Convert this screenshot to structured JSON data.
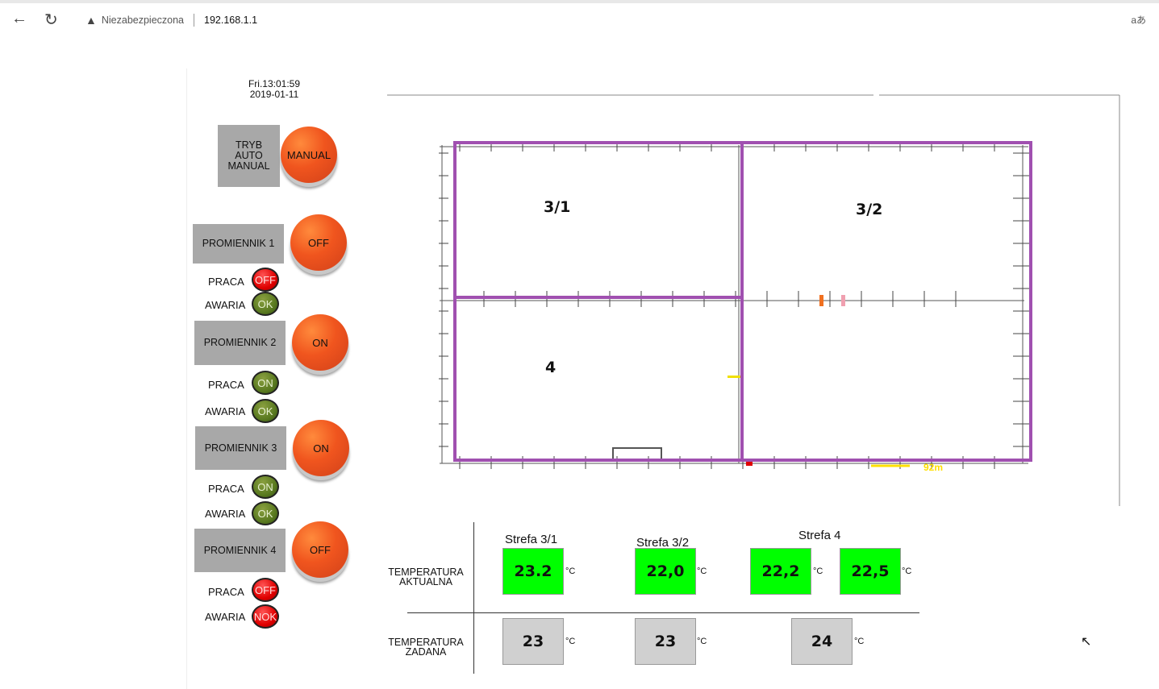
{
  "browser": {
    "back_icon": "arrow-left-icon",
    "reload_icon": "reload-icon",
    "warning_icon": "warning-triangle-icon",
    "security_label": "Niezabezpieczona",
    "url": "192.168.1.1",
    "translate_label": "aあ"
  },
  "clock": {
    "time": "Fri.13:01:59",
    "date": "2019-01-11"
  },
  "mode": {
    "label_lines": [
      "TRYB",
      "AUTO",
      "MANUAL"
    ],
    "button": "MANUAL"
  },
  "heaters": [
    {
      "name": "PROMIENNIK 1",
      "button": "OFF",
      "praca_label": "PRACA",
      "praca": "OFF",
      "praca_color": "red",
      "awaria_label": "AWARIA",
      "awaria": "OK",
      "awaria_color": "green"
    },
    {
      "name": "PROMIENNIK 2",
      "button": "ON",
      "praca_label": "PRACA",
      "praca": "ON",
      "praca_color": "green",
      "awaria_label": "AWARIA",
      "awaria": "OK",
      "awaria_color": "green"
    },
    {
      "name": "PROMIENNIK 3",
      "button": "ON",
      "praca_label": "PRACA",
      "praca": "ON",
      "praca_color": "green",
      "awaria_label": "AWARIA",
      "awaria": "OK",
      "awaria_color": "green"
    },
    {
      "name": "PROMIENNIK 4",
      "button": "OFF",
      "praca_label": "PRACA",
      "praca": "OFF",
      "praca_color": "red",
      "awaria_label": "AWARIA",
      "awaria": "NOK",
      "awaria_color": "red"
    }
  ],
  "plan": {
    "zones": [
      "3/1",
      "3/2",
      "4"
    ],
    "scale_label": "92m",
    "zone_color": "#a050b0"
  },
  "table": {
    "row_actual": [
      "TEMPERATURA",
      "AKTUALNA"
    ],
    "row_set": [
      "TEMPERATURA",
      "ZADANA"
    ],
    "zones": [
      "Strefa 3/1",
      "Strefa 3/2",
      "Strefa 4"
    ],
    "actual": [
      "23.2",
      "22,0",
      "22,2",
      "22,5"
    ],
    "set": [
      "23",
      "23",
      "24"
    ],
    "unit": "°C",
    "actual_color": "#00ff00",
    "set_color": "#d0d0d0"
  }
}
